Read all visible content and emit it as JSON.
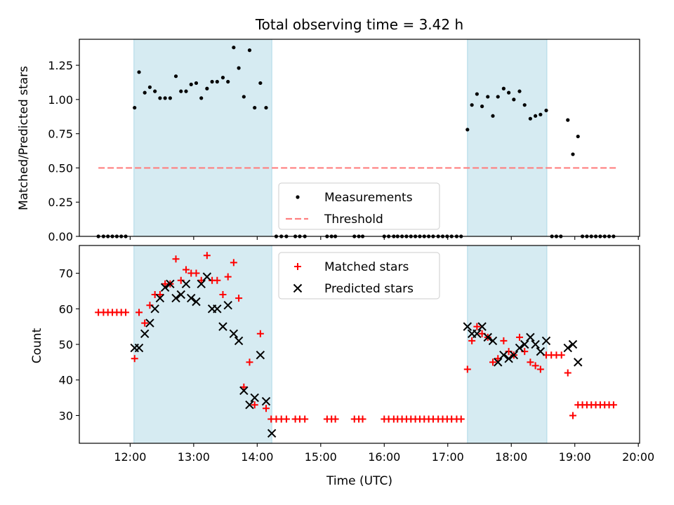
{
  "title": "Total observing time = 3.42 h",
  "chart_data": [
    {
      "type": "scatter",
      "panel": "top",
      "ylabel": "Matched/Predicted stars",
      "ylim": [
        0,
        1.44
      ],
      "y_ticks": [
        0.0,
        0.25,
        0.5,
        0.75,
        1.0,
        1.25
      ],
      "y_tick_labels": [
        "0.00",
        "0.25",
        "0.50",
        "0.75",
        "1.00",
        "1.25"
      ],
      "x_range_hours": [
        11.2,
        20.02
      ],
      "x_ticks": [
        12,
        13,
        14,
        15,
        16,
        17,
        18,
        19,
        20
      ],
      "shaded_intervals": [
        [
          12.06,
          14.23
        ],
        [
          17.31,
          18.56
        ]
      ],
      "legend": [
        "Measurements",
        "Threshold"
      ],
      "legend_placement": "bottom-center",
      "threshold": {
        "name": "Threshold",
        "value": 0.5,
        "x_start": 11.5,
        "x_end": 19.65,
        "color": "#ff7f7f",
        "style": "dashed"
      },
      "series": [
        {
          "name": "Measurements",
          "color": "#000000",
          "marker": "dot",
          "points": [
            [
              11.5,
              0
            ],
            [
              11.58,
              0
            ],
            [
              11.65,
              0
            ],
            [
              11.72,
              0
            ],
            [
              11.79,
              0
            ],
            [
              11.86,
              0
            ],
            [
              11.93,
              0
            ],
            [
              12.07,
              0.94
            ],
            [
              12.14,
              1.2
            ],
            [
              12.23,
              1.05
            ],
            [
              12.31,
              1.09
            ],
            [
              12.39,
              1.06
            ],
            [
              12.47,
              1.01
            ],
            [
              12.55,
              1.01
            ],
            [
              12.63,
              1.01
            ],
            [
              12.72,
              1.17
            ],
            [
              12.8,
              1.06
            ],
            [
              12.88,
              1.06
            ],
            [
              12.96,
              1.11
            ],
            [
              13.04,
              1.12
            ],
            [
              13.12,
              1.01
            ],
            [
              13.21,
              1.08
            ],
            [
              13.29,
              1.13
            ],
            [
              13.37,
              1.13
            ],
            [
              13.46,
              1.16
            ],
            [
              13.54,
              1.13
            ],
            [
              13.63,
              1.38
            ],
            [
              13.71,
              1.23
            ],
            [
              13.79,
              1.02
            ],
            [
              13.88,
              1.36
            ],
            [
              13.96,
              0.94
            ],
            [
              14.05,
              1.12
            ],
            [
              14.14,
              0.94
            ],
            [
              14.3,
              0
            ],
            [
              14.38,
              0
            ],
            [
              14.46,
              0
            ],
            [
              14.6,
              0
            ],
            [
              14.67,
              0
            ],
            [
              14.75,
              0
            ],
            [
              15.1,
              0
            ],
            [
              15.17,
              0
            ],
            [
              15.23,
              0
            ],
            [
              15.53,
              0
            ],
            [
              15.6,
              0
            ],
            [
              15.66,
              0
            ],
            [
              16.0,
              0
            ],
            [
              16.07,
              0
            ],
            [
              16.15,
              0
            ],
            [
              16.21,
              0
            ],
            [
              16.28,
              0
            ],
            [
              16.35,
              0
            ],
            [
              16.42,
              0
            ],
            [
              16.49,
              0
            ],
            [
              16.56,
              0
            ],
            [
              16.63,
              0
            ],
            [
              16.7,
              0
            ],
            [
              16.77,
              0
            ],
            [
              16.85,
              0
            ],
            [
              16.92,
              0
            ],
            [
              16.99,
              0
            ],
            [
              17.06,
              0
            ],
            [
              17.14,
              0
            ],
            [
              17.21,
              0
            ],
            [
              17.31,
              0.78
            ],
            [
              17.38,
              0.96
            ],
            [
              17.46,
              1.04
            ],
            [
              17.54,
              0.95
            ],
            [
              17.63,
              1.02
            ],
            [
              17.71,
              0.88
            ],
            [
              17.79,
              1.02
            ],
            [
              17.88,
              1.08
            ],
            [
              17.96,
              1.05
            ],
            [
              18.04,
              1.0
            ],
            [
              18.13,
              1.06
            ],
            [
              18.21,
              0.96
            ],
            [
              18.3,
              0.86
            ],
            [
              18.38,
              0.88
            ],
            [
              18.46,
              0.89
            ],
            [
              18.55,
              0.92
            ],
            [
              18.64,
              0
            ],
            [
              18.71,
              0
            ],
            [
              18.78,
              0
            ],
            [
              18.89,
              0.85
            ],
            [
              18.97,
              0.6
            ],
            [
              19.05,
              0.73
            ],
            [
              19.12,
              0
            ],
            [
              19.19,
              0
            ],
            [
              19.26,
              0
            ],
            [
              19.33,
              0
            ],
            [
              19.4,
              0
            ],
            [
              19.47,
              0
            ],
            [
              19.54,
              0
            ],
            [
              19.61,
              0
            ]
          ]
        }
      ]
    },
    {
      "type": "scatter",
      "panel": "bottom",
      "title": "",
      "xlabel": "Time (UTC)",
      "ylabel": "Count",
      "ylim": [
        22.2,
        77.8
      ],
      "y_ticks": [
        30,
        40,
        50,
        60,
        70
      ],
      "y_tick_labels": [
        "30",
        "40",
        "50",
        "60",
        "70"
      ],
      "x_range_hours": [
        11.2,
        20.02
      ],
      "x_ticks": [
        12,
        13,
        14,
        15,
        16,
        17,
        18,
        19,
        20
      ],
      "x_tick_labels": [
        "12:00",
        "13:00",
        "14:00",
        "15:00",
        "16:00",
        "17:00",
        "18:00",
        "19:00",
        "20:00"
      ],
      "shaded_intervals": [
        [
          12.06,
          14.23
        ],
        [
          17.31,
          18.56
        ]
      ],
      "legend": [
        "Matched stars",
        "Predicted stars"
      ],
      "legend_placement": "top-center",
      "series": [
        {
          "name": "Matched stars",
          "color": "#ff0000",
          "marker": "plus",
          "points": [
            [
              11.5,
              59
            ],
            [
              11.58,
              59
            ],
            [
              11.65,
              59
            ],
            [
              11.72,
              59
            ],
            [
              11.79,
              59
            ],
            [
              11.86,
              59
            ],
            [
              11.93,
              59
            ],
            [
              12.07,
              46
            ],
            [
              12.14,
              59
            ],
            [
              12.23,
              56
            ],
            [
              12.31,
              61
            ],
            [
              12.39,
              64
            ],
            [
              12.47,
              64
            ],
            [
              12.55,
              67
            ],
            [
              12.63,
              67
            ],
            [
              12.72,
              74
            ],
            [
              12.8,
              68
            ],
            [
              12.88,
              71
            ],
            [
              12.96,
              70
            ],
            [
              13.04,
              70
            ],
            [
              13.12,
              68
            ],
            [
              13.21,
              75
            ],
            [
              13.29,
              68
            ],
            [
              13.37,
              68
            ],
            [
              13.46,
              64
            ],
            [
              13.54,
              69
            ],
            [
              13.63,
              73
            ],
            [
              13.71,
              63
            ],
            [
              13.79,
              38
            ],
            [
              13.88,
              45
            ],
            [
              13.96,
              33
            ],
            [
              14.05,
              53
            ],
            [
              14.14,
              32
            ],
            [
              14.22,
              29
            ],
            [
              14.3,
              29
            ],
            [
              14.38,
              29
            ],
            [
              14.46,
              29
            ],
            [
              14.6,
              29
            ],
            [
              14.67,
              29
            ],
            [
              14.75,
              29
            ],
            [
              15.1,
              29
            ],
            [
              15.17,
              29
            ],
            [
              15.23,
              29
            ],
            [
              15.53,
              29
            ],
            [
              15.6,
              29
            ],
            [
              15.66,
              29
            ],
            [
              16.0,
              29
            ],
            [
              16.07,
              29
            ],
            [
              16.15,
              29
            ],
            [
              16.21,
              29
            ],
            [
              16.28,
              29
            ],
            [
              16.35,
              29
            ],
            [
              16.42,
              29
            ],
            [
              16.49,
              29
            ],
            [
              16.56,
              29
            ],
            [
              16.63,
              29
            ],
            [
              16.7,
              29
            ],
            [
              16.77,
              29
            ],
            [
              16.85,
              29
            ],
            [
              16.92,
              29
            ],
            [
              16.99,
              29
            ],
            [
              17.06,
              29
            ],
            [
              17.14,
              29
            ],
            [
              17.21,
              29
            ],
            [
              17.31,
              43
            ],
            [
              17.38,
              51
            ],
            [
              17.46,
              55
            ],
            [
              17.54,
              53
            ],
            [
              17.63,
              52
            ],
            [
              17.71,
              45
            ],
            [
              17.79,
              46
            ],
            [
              17.88,
              51
            ],
            [
              17.96,
              48
            ],
            [
              18.04,
              47
            ],
            [
              18.13,
              52
            ],
            [
              18.21,
              48
            ],
            [
              18.3,
              45
            ],
            [
              18.38,
              44
            ],
            [
              18.46,
              43
            ],
            [
              18.55,
              47
            ],
            [
              18.63,
              47
            ],
            [
              18.71,
              47
            ],
            [
              18.79,
              47
            ],
            [
              18.89,
              42
            ],
            [
              18.97,
              30
            ],
            [
              19.05,
              33
            ],
            [
              19.12,
              33
            ],
            [
              19.19,
              33
            ],
            [
              19.26,
              33
            ],
            [
              19.33,
              33
            ],
            [
              19.4,
              33
            ],
            [
              19.47,
              33
            ],
            [
              19.54,
              33
            ],
            [
              19.61,
              33
            ]
          ]
        },
        {
          "name": "Predicted stars",
          "color": "#000000",
          "marker": "x",
          "points": [
            [
              12.07,
              49
            ],
            [
              12.14,
              49
            ],
            [
              12.23,
              53
            ],
            [
              12.31,
              56
            ],
            [
              12.39,
              60
            ],
            [
              12.47,
              63
            ],
            [
              12.55,
              66
            ],
            [
              12.63,
              67
            ],
            [
              12.72,
              63
            ],
            [
              12.8,
              64
            ],
            [
              12.88,
              67
            ],
            [
              12.96,
              63
            ],
            [
              13.04,
              62
            ],
            [
              13.12,
              67
            ],
            [
              13.21,
              69
            ],
            [
              13.29,
              60
            ],
            [
              13.37,
              60
            ],
            [
              13.46,
              55
            ],
            [
              13.54,
              61
            ],
            [
              13.63,
              53
            ],
            [
              13.71,
              51
            ],
            [
              13.79,
              37
            ],
            [
              13.88,
              33
            ],
            [
              13.96,
              35
            ],
            [
              14.05,
              47
            ],
            [
              14.14,
              34
            ],
            [
              14.23,
              25
            ],
            [
              17.31,
              55
            ],
            [
              17.38,
              53
            ],
            [
              17.46,
              53
            ],
            [
              17.54,
              55
            ],
            [
              17.63,
              52
            ],
            [
              17.71,
              51
            ],
            [
              17.79,
              45
            ],
            [
              17.88,
              47
            ],
            [
              17.96,
              46
            ],
            [
              18.04,
              47
            ],
            [
              18.13,
              49
            ],
            [
              18.21,
              50
            ],
            [
              18.3,
              52
            ],
            [
              18.38,
              50
            ],
            [
              18.46,
              48
            ],
            [
              18.55,
              51
            ],
            [
              18.89,
              49
            ],
            [
              18.97,
              50
            ],
            [
              19.05,
              45
            ]
          ]
        }
      ]
    }
  ]
}
